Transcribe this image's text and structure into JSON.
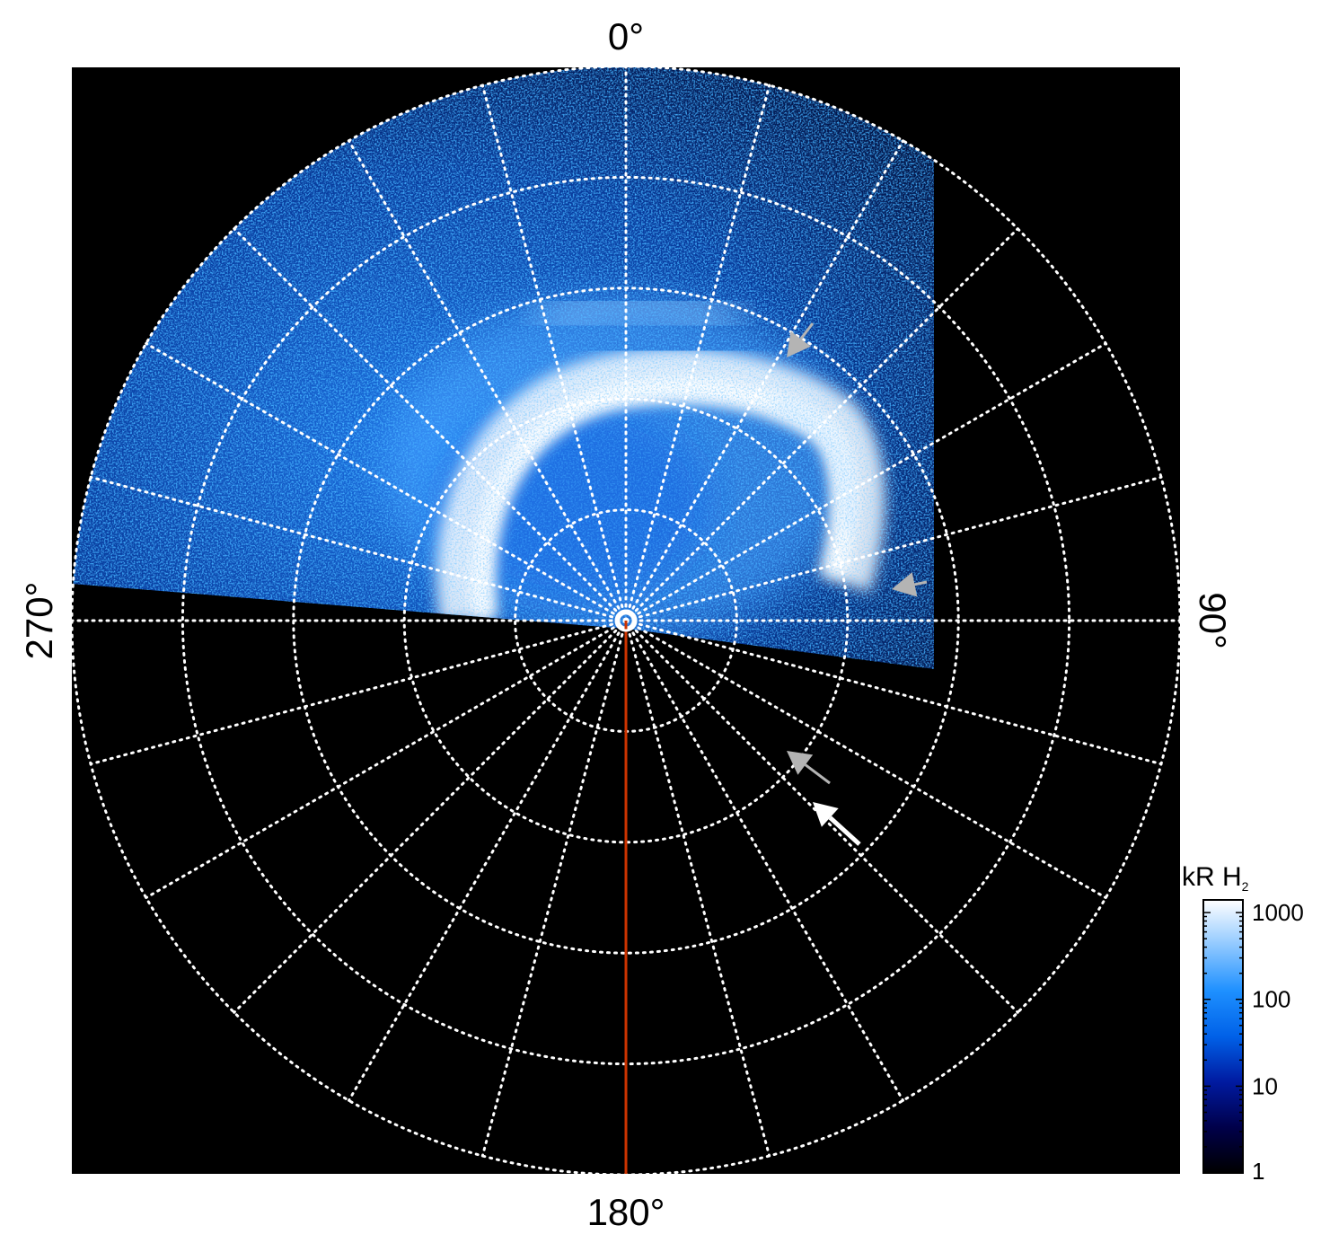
{
  "figure": {
    "labels": {
      "top": "0°",
      "right": "90°",
      "bottom": "180°",
      "left": "270°"
    },
    "colorbar": {
      "title_main": "kR H",
      "title_sub": "2",
      "ticks": [
        {
          "value": 1,
          "label": "1"
        },
        {
          "value": 10,
          "label": "10"
        },
        {
          "value": 100,
          "label": "100"
        },
        {
          "value": 1000,
          "label": "1000"
        }
      ],
      "range": [
        1,
        1400
      ],
      "colors": [
        "#000000",
        "#00004a",
        "#001aa0",
        "#0061e8",
        "#1e90ff",
        "#8fc8ff",
        "#ffffff"
      ]
    },
    "grid": {
      "rings": 5,
      "spokes": 24,
      "style": "dotted",
      "color": "#ffffff"
    },
    "reference_line_color": "#cc3300",
    "arrows": [
      {
        "color": "#b4b4b4"
      },
      {
        "color": "#b4b4b4"
      },
      {
        "color": "#b4b4b4"
      },
      {
        "color": "#ffffff"
      }
    ]
  }
}
